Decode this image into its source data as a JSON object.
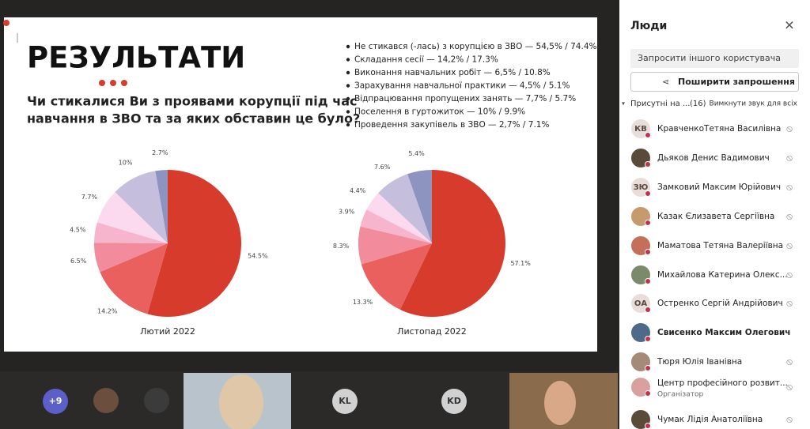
{
  "slide": {
    "title": "РЕЗУЛЬТАТИ",
    "question": [
      "Чи стикалися Ви з проявами корупції під час",
      "навчання в ЗВО та за яких обставин це було?"
    ],
    "bullets": [
      "Не стикався (-лась) з корупцією в ЗВО — 54,5% / 74.4%",
      "Складання сесії — 14,2% / 17.3%",
      "Виконання навчальних робіт — 6,5% / 10.8%",
      "Зарахування навчальної практики — 4,5% / 5.1%",
      "Відпрацювання пропущених занять — 7,7% / 5.7%",
      "Поселення в гуртожиток — 10% / 9.9%",
      "Проведення закупівель в ЗВО — 2,7% / 7.1%"
    ]
  },
  "chart_data": [
    {
      "type": "pie",
      "title": "Лютий 2022",
      "values": [
        54.5,
        14.2,
        6.5,
        4.5,
        7.7,
        10,
        2.7
      ],
      "value_labels": [
        "54.5%",
        "14.2%",
        "6.5%",
        "4.5%",
        "7.7%",
        "10%",
        "2.7%"
      ],
      "colors": [
        "#d63b2b",
        "#e9605f",
        "#f28b9b",
        "#f6b5cd",
        "#fbd9ef",
        "#c5bedc",
        "#8d94bf"
      ]
    },
    {
      "type": "pie",
      "title": "Листопад 2022",
      "values": [
        57.1,
        13.3,
        8.3,
        3.9,
        4.4,
        7.6,
        5.4
      ],
      "value_labels": [
        "57.1%",
        "13.3%",
        "8.3%",
        "3.9%",
        "4.4%",
        "7.6%",
        "5.4%"
      ],
      "colors": [
        "#d63b2b",
        "#e9605f",
        "#f28b9b",
        "#f6b5cd",
        "#fbd9ef",
        "#c5bedc",
        "#8d94bf"
      ]
    }
  ],
  "panel": {
    "title": "Люди",
    "invite": "Запросити іншого користувача",
    "share": "Поширити запрошення",
    "section": "Присутні на ...",
    "count": "(16)",
    "mute_all": "Вимкнути звук для всіх",
    "people": [
      {
        "initials": "КВ",
        "name": "КравченкоТетяна Василівна"
      },
      {
        "name": "Дьяков Денис Вадимович"
      },
      {
        "initials": "ЗЮ",
        "name": "Замковий Максим Юрійович"
      },
      {
        "name": "Казак Єлизавета Сергіївна"
      },
      {
        "name": "Маматова Тетяна Валеріївна"
      },
      {
        "name": "Михайлова Катерина Олекс..."
      },
      {
        "initials": "ОА",
        "name": "Остренко Сергій Андрійович"
      },
      {
        "name": "Свисенко Максим Олегович"
      },
      {
        "name": "Тюря Юлія Іванівна"
      },
      {
        "name": "Центр професійного розвит...",
        "role": "Організатор"
      },
      {
        "name": "Чумак Лідія Анатоліївна"
      }
    ]
  },
  "video_strip": {
    "tiles": [
      "+9",
      "KL",
      "KD"
    ]
  }
}
